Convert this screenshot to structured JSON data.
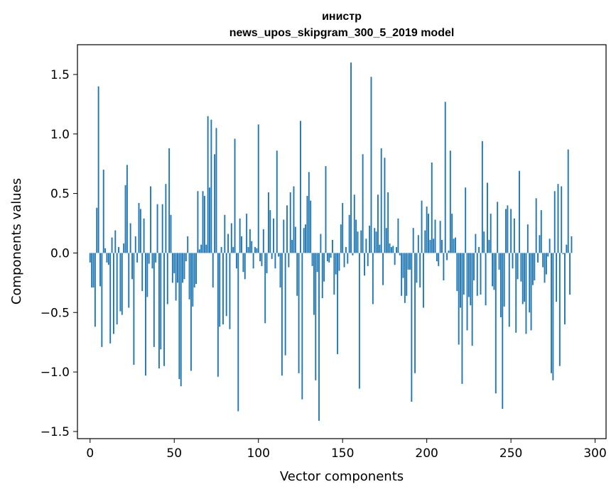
{
  "chart_data": {
    "type": "bar",
    "title": "инистр",
    "subtitle": "news_upos_skipgram_300_5_2019 model",
    "xlabel": "Vector components",
    "ylabel": "Components values",
    "xlim": [
      -7.5,
      306.5
    ],
    "ylim": [
      -1.56,
      1.75
    ],
    "xticks": [
      0,
      50,
      100,
      150,
      200,
      250,
      300
    ],
    "yticks": [
      -1.5,
      -1.0,
      -0.5,
      0.0,
      0.5,
      1.0,
      1.5
    ],
    "bar_color": "#1f77b4",
    "series": [
      {
        "name": "инистр",
        "values": [
          -0.08,
          -0.29,
          -0.29,
          -0.62,
          0.38,
          1.4,
          -0.28,
          -0.79,
          0.7,
          0.04,
          -0.08,
          -0.1,
          -0.76,
          0.13,
          -0.68,
          0.19,
          -0.6,
          0.05,
          -0.49,
          -0.52,
          0.08,
          0.57,
          0.74,
          -0.46,
          0.25,
          -0.22,
          -0.94,
          0.14,
          -0.08,
          0.42,
          0.37,
          -0.32,
          0.29,
          -1.03,
          -0.37,
          -0.09,
          0.56,
          -0.13,
          -0.79,
          -0.08,
          0.41,
          -0.97,
          -0.81,
          0.41,
          -0.95,
          0.58,
          -0.43,
          0.88,
          0.32,
          -0.25,
          -0.17,
          -0.4,
          -0.25,
          -1.06,
          -1.12,
          -0.25,
          -0.22,
          -0.07,
          0.14,
          -0.39,
          -0.99,
          -0.45,
          -0.29,
          -0.26,
          0.52,
          0.03,
          0.07,
          0.52,
          0.48,
          0.07,
          1.15,
          0.55,
          1.12,
          -0.29,
          0.83,
          1.05,
          -1.04,
          -0.62,
          0.05,
          -0.6,
          0.32,
          -0.53,
          0.16,
          -0.64,
          0.25,
          0.05,
          0.96,
          -0.13,
          -1.33,
          0.29,
          0.14,
          -0.16,
          -0.22,
          0.33,
          0.05,
          0.2,
          0.1,
          -0.13,
          0.05,
          0.04,
          1.08,
          -0.07,
          -0.11,
          0.2,
          -0.59,
          -0.17,
          0.51,
          0.36,
          -0.05,
          0.29,
          -0.13,
          0.86,
          -0.03,
          -0.29,
          -1.03,
          0.28,
          -0.86,
          0.4,
          -0.12,
          0.51,
          0.11,
          0.56,
          0.22,
          -0.36,
          -1.01,
          1.11,
          -1.23,
          0.21,
          0.24,
          0.48,
          0.68,
          0.44,
          -0.11,
          -0.52,
          -1.07,
          -0.16,
          -1.41,
          0.16,
          -0.38,
          -0.24,
          0.73,
          -0.07,
          -0.08,
          -0.04,
          0.11,
          -0.35,
          -0.18,
          -0.85,
          -0.15,
          0.24,
          0.42,
          -0.12,
          0.05,
          -0.09,
          0.32,
          1.6,
          -0.02,
          0.49,
          0.28,
          0.18,
          -1.14,
          0.19,
          0.83,
          -0.19,
          0.12,
          -0.11,
          0.23,
          1.48,
          -0.43,
          0.21,
          0.18,
          0.49,
          0.07,
          0.88,
          -0.27,
          0.8,
          0.21,
          0.51,
          0.08,
          0.05,
          0.06,
          -0.1,
          0.05,
          0.29,
          -0.02,
          -0.36,
          -0.21,
          -0.42,
          -0.36,
          -0.14,
          -0.14,
          -1.25,
          0.21,
          -1.01,
          -0.25,
          0.15,
          -0.29,
          0.44,
          -0.46,
          0.19,
          0.39,
          0.33,
          0.11,
          0.76,
          0.12,
          0.28,
          -0.07,
          -0.11,
          0.27,
          0.11,
          -0.23,
          1.27,
          -0.06,
          0.02,
          0.86,
          0.33,
          0.12,
          0.13,
          -0.32,
          -0.77,
          -0.46,
          -1.1,
          -0.35,
          0.55,
          -0.65,
          -0.37,
          -0.44,
          -0.78,
          -0.23,
          0.16,
          -0.36,
          0.05,
          -0.35,
          0.94,
          0.18,
          -0.44,
          0.59,
          0.11,
          0.33,
          -0.28,
          -0.31,
          -1.18,
          0.43,
          -0.14,
          -0.54,
          -1.31,
          -0.45,
          0.37,
          0.4,
          -0.62,
          0.37,
          -0.13,
          0.29,
          -0.67,
          -0.22,
          0.69,
          -0.24,
          -0.43,
          -0.41,
          -0.68,
          0.24,
          -0.5,
          -0.65,
          -0.27,
          -0.23,
          0.46,
          -0.08,
          0.15,
          0.36,
          -0.12,
          -0.25,
          -0.18,
          -0.03,
          0.12,
          -1.01,
          -1.07,
          0.52,
          -0.41,
          0.58,
          -0.95,
          0.56,
          -0.01,
          -0.6,
          0.07,
          0.87,
          -0.35,
          0.14
        ]
      }
    ]
  }
}
